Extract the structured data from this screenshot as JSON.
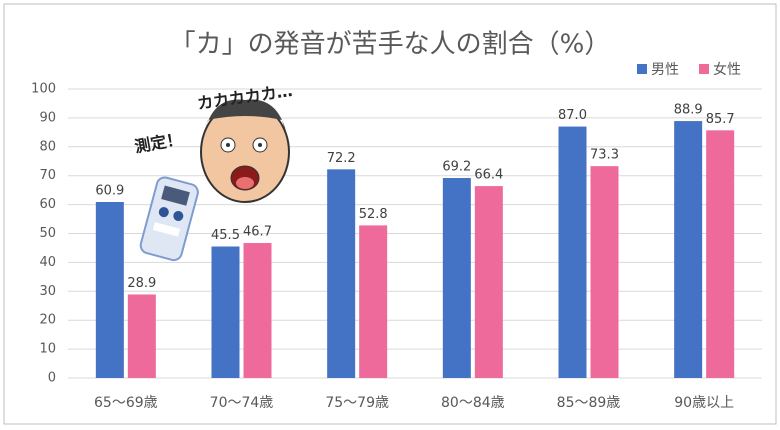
{
  "chart_data": {
    "type": "bar",
    "title": "「カ」の発音が苦手な人の割合（%）",
    "categories": [
      "65〜69歳",
      "70〜74歳",
      "75〜79歳",
      "80〜84歳",
      "85〜89歳",
      "90歳以上"
    ],
    "series": [
      {
        "name": "男性",
        "color": "#4472c4",
        "values": [
          60.9,
          45.5,
          72.2,
          69.2,
          87.0,
          88.9
        ],
        "value_labels": [
          "60.9",
          "45.5",
          "72.2",
          "69.2",
          "87.0",
          "88.9"
        ]
      },
      {
        "name": "女性",
        "color": "#ee6a9b",
        "values": [
          28.9,
          46.7,
          52.8,
          66.4,
          73.3,
          85.7
        ],
        "value_labels": [
          "28.9",
          "46.7",
          "52.8",
          "66.4",
          "73.3",
          "85.7"
        ]
      }
    ],
    "ylim": [
      0,
      100
    ],
    "yticks": [
      0,
      10,
      20,
      30,
      40,
      50,
      60,
      70,
      80,
      90,
      100
    ],
    "grid": true,
    "legend": "top-right",
    "annotations": [
      {
        "text": "測定！"
      },
      {
        "text": "カカカカカ…"
      }
    ]
  }
}
